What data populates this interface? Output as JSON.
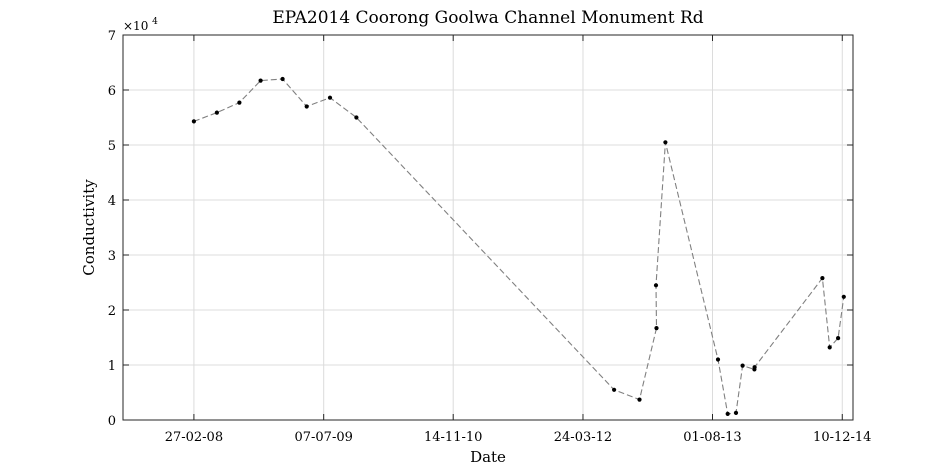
{
  "chart_data": {
    "type": "line",
    "title": "EPA2014 Coorong Goolwa Channel Monument Rd",
    "xlabel": "Date",
    "ylabel": "Conductivity",
    "y_exponent_label": "×10",
    "y_exponent_power": "4",
    "y_scale_factor": 10000,
    "xlim": [
      "2007-06-01",
      "2015-01-20"
    ],
    "ylim": [
      0,
      70000
    ],
    "x_ticks": [
      {
        "date": "2008-02-27",
        "label": "27-02-08"
      },
      {
        "date": "2009-07-07",
        "label": "07-07-09"
      },
      {
        "date": "2010-11-14",
        "label": "14-11-10"
      },
      {
        "date": "2012-03-24",
        "label": "24-03-12"
      },
      {
        "date": "2013-08-01",
        "label": "01-08-13"
      },
      {
        "date": "2014-12-10",
        "label": "10-12-14"
      }
    ],
    "y_ticks": [
      {
        "value": 0,
        "label": "0"
      },
      {
        "value": 10000,
        "label": "1"
      },
      {
        "value": 20000,
        "label": "2"
      },
      {
        "value": 30000,
        "label": "3"
      },
      {
        "value": 40000,
        "label": "4"
      },
      {
        "value": 50000,
        "label": "5"
      },
      {
        "value": 60000,
        "label": "6"
      },
      {
        "value": 70000,
        "label": "7"
      }
    ],
    "grid": true,
    "line_style": "dashed",
    "line_color": "#808080",
    "marker_color": "#000000",
    "series": [
      {
        "points": [
          {
            "x": "2008-02-27",
            "y": 54300
          },
          {
            "x": "2008-05-25",
            "y": 55900
          },
          {
            "x": "2008-08-19",
            "y": 57700
          },
          {
            "x": "2008-11-08",
            "y": 61700
          },
          {
            "x": "2009-01-31",
            "y": 62000
          },
          {
            "x": "2009-05-03",
            "y": 57000
          },
          {
            "x": "2009-07-31",
            "y": 58600
          },
          {
            "x": "2009-11-09",
            "y": 55000
          },
          {
            "x": "2012-07-21",
            "y": 5500
          },
          {
            "x": "2012-10-26",
            "y": 3700
          },
          {
            "x": "2012-12-30",
            "y": 16700
          },
          {
            "x": "2012-12-28",
            "y": 24500
          },
          {
            "x": "2013-02-02",
            "y": 50500
          },
          {
            "x": "2013-08-22",
            "y": 11000
          },
          {
            "x": "2013-09-28",
            "y": 1100
          },
          {
            "x": "2013-10-30",
            "y": 1300
          },
          {
            "x": "2013-11-24",
            "y": 9900
          },
          {
            "x": "2014-01-08",
            "y": 9200
          },
          {
            "x": "2014-01-09",
            "y": 9600
          },
          {
            "x": "2014-09-25",
            "y": 25800
          },
          {
            "x": "2014-10-23",
            "y": 13200
          },
          {
            "x": "2014-11-24",
            "y": 14900
          },
          {
            "x": "2014-12-16",
            "y": 22400
          }
        ]
      }
    ]
  }
}
